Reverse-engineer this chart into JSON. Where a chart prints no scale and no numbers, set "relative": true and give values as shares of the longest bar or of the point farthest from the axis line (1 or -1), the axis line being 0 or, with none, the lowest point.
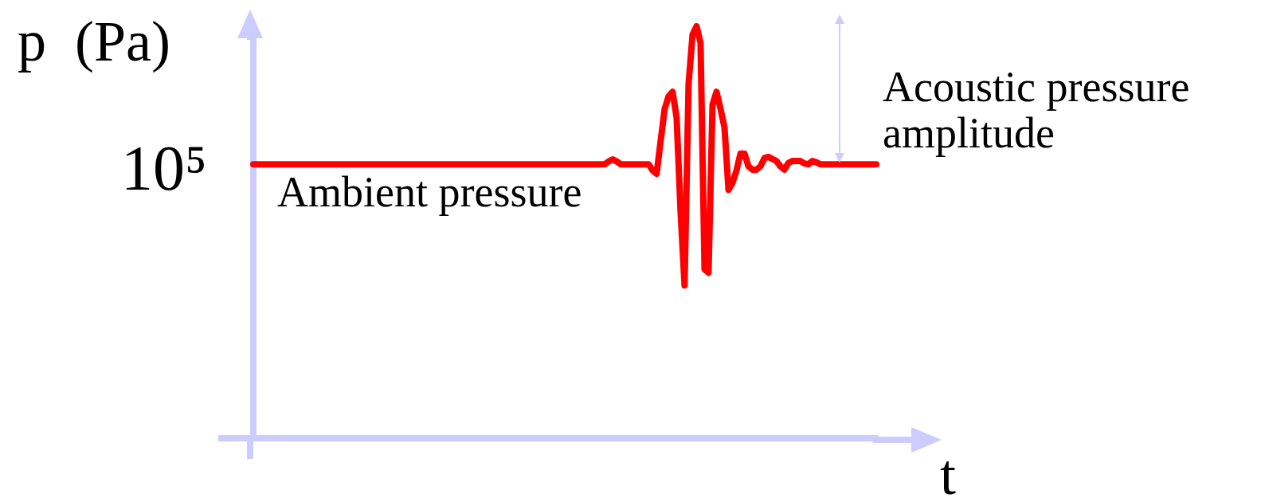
{
  "chart_data": {
    "type": "line",
    "relative": true,
    "xlabel": "t",
    "ylabel": "p  (Pa)",
    "marker": "none",
    "line_style": "solid",
    "categories": [
      null,
      null,
      null,
      null,
      null,
      null,
      null,
      null,
      null,
      null,
      null,
      null,
      null,
      null,
      null,
      null,
      null,
      null,
      null,
      null,
      null,
      null,
      null,
      null,
      null,
      null,
      null,
      null,
      null,
      null,
      null,
      null,
      null,
      null,
      null,
      null,
      null,
      null,
      null,
      null,
      null,
      null,
      null,
      null,
      null,
      null,
      null,
      null,
      null,
      null,
      null,
      null,
      null,
      null,
      null,
      null,
      null,
      null,
      null,
      null,
      null,
      null,
      null,
      null,
      null,
      null,
      null,
      null,
      null,
      null,
      null,
      null,
      null,
      null,
      null,
      null,
      null,
      null,
      null,
      null,
      null,
      null,
      null,
      null,
      null,
      null,
      null,
      null,
      null,
      null,
      null,
      null,
      null,
      null,
      null,
      null,
      null,
      null,
      null,
      null,
      null,
      null,
      null,
      null,
      null,
      null,
      null,
      null,
      null,
      null,
      null,
      null,
      null,
      null,
      null,
      null,
      null,
      null,
      null,
      null,
      null,
      null,
      null,
      null,
      null,
      null,
      null,
      null,
      null,
      null,
      null,
      null,
      null,
      null,
      null,
      null,
      null,
      null,
      null,
      null,
      null,
      null,
      null,
      null,
      null,
      null,
      null,
      null,
      null,
      null,
      null,
      null,
      null,
      null,
      null,
      null,
      null
    ],
    "series": [
      {
        "color": "#ff0000",
        "values": [
          0.665,
          0.665,
          0.665,
          0.665,
          0.665,
          0.665,
          0.665,
          0.665,
          0.665,
          0.665,
          0.665,
          0.665,
          0.665,
          0.665,
          0.665,
          0.665,
          0.665,
          0.665,
          0.665,
          0.665,
          0.665,
          0.665,
          0.665,
          0.665,
          0.665,
          0.665,
          0.665,
          0.665,
          0.665,
          0.665,
          0.665,
          0.665,
          0.665,
          0.665,
          0.665,
          0.665,
          0.665,
          0.665,
          0.665,
          0.665,
          0.665,
          0.665,
          0.665,
          0.665,
          0.665,
          0.665,
          0.665,
          0.665,
          0.665,
          0.665,
          0.665,
          0.665,
          0.665,
          0.665,
          0.665,
          0.665,
          0.665,
          0.665,
          0.665,
          0.665,
          0.665,
          0.665,
          0.665,
          0.665,
          0.665,
          0.665,
          0.665,
          0.665,
          0.665,
          0.665,
          0.665,
          0.665,
          0.665,
          0.665,
          0.665,
          0.665,
          0.665,
          0.665,
          0.665,
          0.665,
          0.665,
          0.665,
          0.665,
          0.665,
          0.665,
          0.665,
          0.665,
          0.665,
          0.665,
          0.672,
          0.677,
          0.672,
          0.665,
          0.665,
          0.665,
          0.665,
          0.665,
          0.665,
          0.665,
          0.665,
          0.65,
          0.642,
          0.721,
          0.799,
          0.83,
          0.841,
          0.779,
          0.55,
          0.371,
          0.86,
          0.98,
          1.0,
          0.96,
          0.41,
          0.402,
          0.81,
          0.841,
          0.8,
          0.754,
          0.603,
          0.62,
          0.65,
          0.691,
          0.691,
          0.66,
          0.652,
          0.652,
          0.66,
          0.68,
          0.683,
          0.678,
          0.673,
          0.66,
          0.652,
          0.668,
          0.673,
          0.673,
          0.673,
          0.667,
          0.665,
          0.673,
          0.67,
          0.665,
          0.665,
          0.665,
          0.665,
          0.665,
          0.665,
          0.665,
          0.665,
          0.665,
          0.665,
          0.665,
          0.665,
          0.665,
          0.665,
          0.665
        ]
      }
    ],
    "annotations": [
      "Ambient pressure",
      "Acoustic pressure amplitude",
      "10⁵"
    ]
  }
}
